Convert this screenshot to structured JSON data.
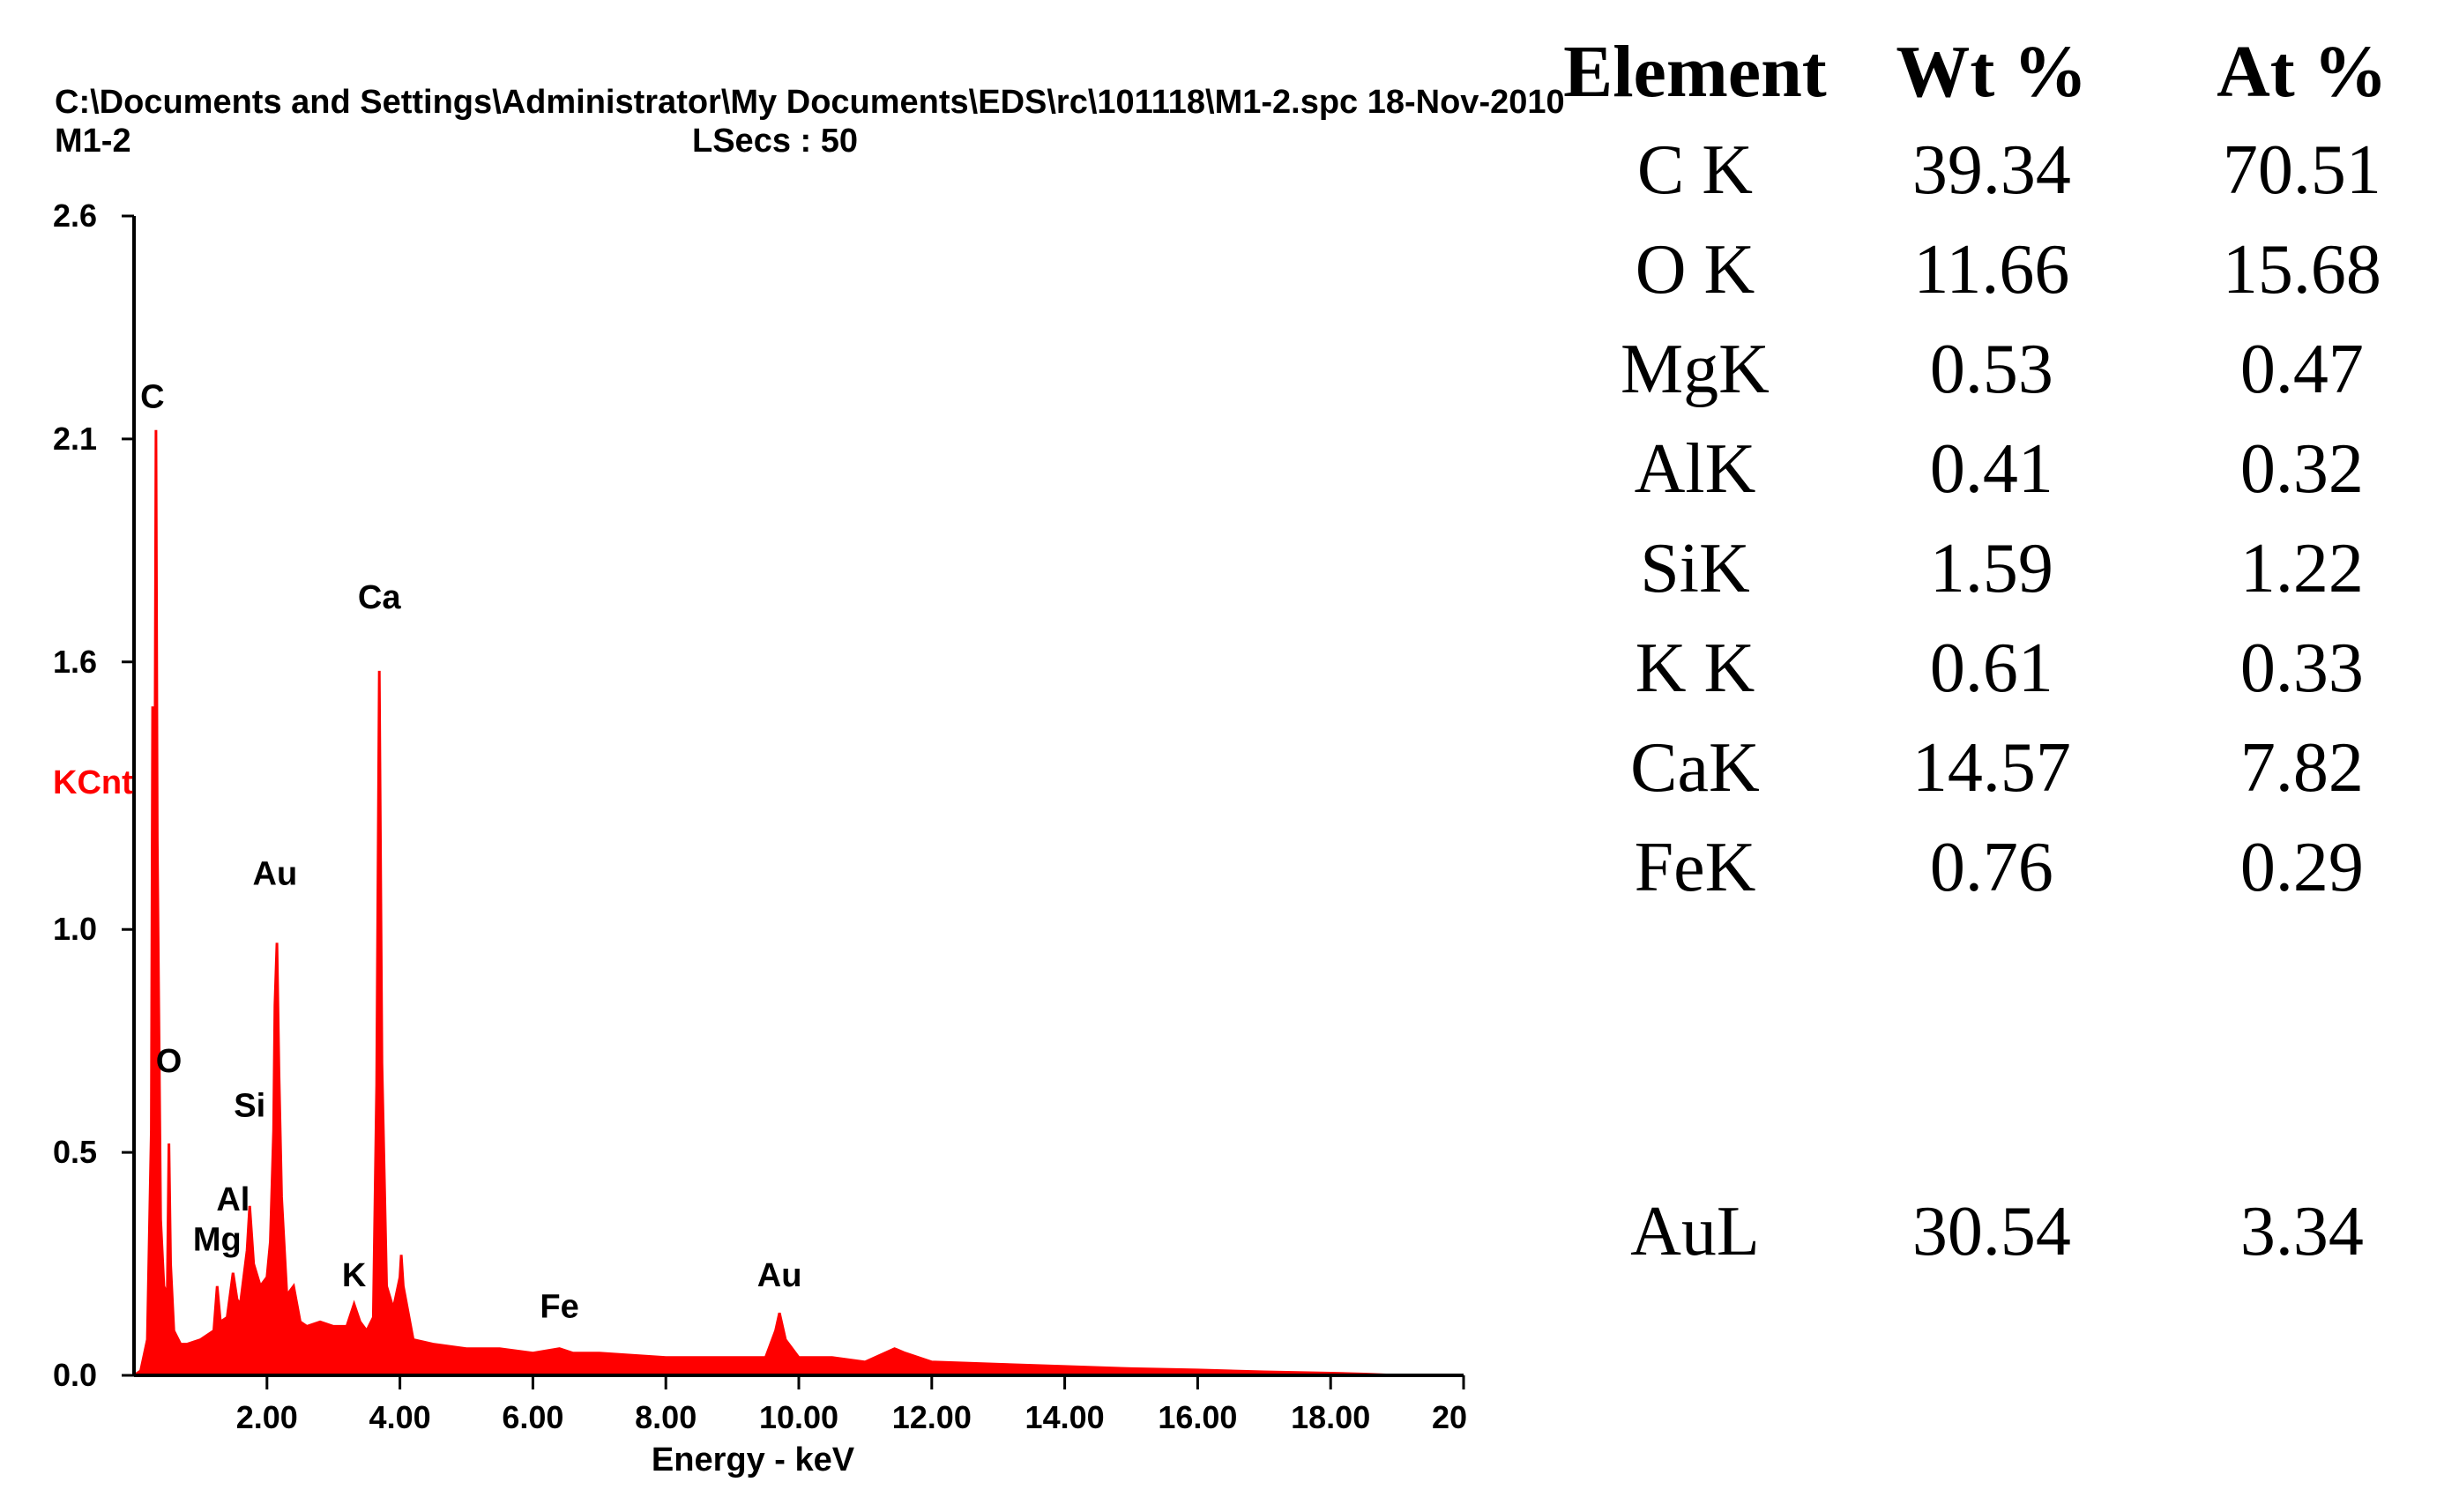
{
  "header": {
    "file_path": "C:\\Documents and Settings\\Administrator\\My Documents\\EDS\\rc\\101118\\M1-2.spc  18-Nov-2010",
    "sample": "M1-2",
    "lsecs": "LSecs :  50"
  },
  "colors": {
    "spectrum": "#ff0000",
    "axis": "#000000",
    "ylabel": "#ff0000"
  },
  "chart_data": {
    "type": "area",
    "xlabel": "Energy - keV",
    "ylabel": "KCnt",
    "xlim": [
      0,
      20
    ],
    "ylim": [
      0,
      2.6
    ],
    "x_ticks": [
      2,
      4,
      6,
      8,
      10,
      12,
      14,
      16,
      18,
      20
    ],
    "x_tick_labels": [
      "2.00",
      "4.00",
      "6.00",
      "8.00",
      "10.00",
      "12.00",
      "14.00",
      "16.00",
      "18.00",
      "20"
    ],
    "y_ticks": [
      0,
      0.5,
      1.0,
      1.6,
      2.1,
      2.6
    ],
    "y_tick_labels": [
      "0.0",
      "0.5",
      "1.0",
      "1.6",
      "2.1",
      "2.6"
    ],
    "series": [
      {
        "values_kcnt_at_keV": [
          [
            0.0,
            0
          ],
          [
            0.1,
            0.01
          ],
          [
            0.2,
            0.08
          ],
          [
            0.26,
            0.55
          ],
          [
            0.28,
            1.5
          ],
          [
            0.3,
            0.6
          ],
          [
            0.33,
            2.12
          ],
          [
            0.35,
            1.2
          ],
          [
            0.4,
            0.35
          ],
          [
            0.45,
            0.2
          ],
          [
            0.5,
            0.18
          ],
          [
            0.525,
            0.52
          ],
          [
            0.55,
            0.25
          ],
          [
            0.6,
            0.1
          ],
          [
            0.7,
            0.07
          ],
          [
            0.8,
            0.07
          ],
          [
            1.0,
            0.08
          ],
          [
            1.2,
            0.1
          ],
          [
            1.25,
            0.2
          ],
          [
            1.3,
            0.12
          ],
          [
            1.4,
            0.13
          ],
          [
            1.49,
            0.23
          ],
          [
            1.55,
            0.17
          ],
          [
            1.6,
            0.16
          ],
          [
            1.7,
            0.28
          ],
          [
            1.74,
            0.38
          ],
          [
            1.8,
            0.25
          ],
          [
            1.9,
            0.2
          ],
          [
            2.0,
            0.22
          ],
          [
            2.05,
            0.3
          ],
          [
            2.1,
            0.55
          ],
          [
            2.12,
            0.83
          ],
          [
            2.15,
            0.97
          ],
          [
            2.18,
            0.68
          ],
          [
            2.22,
            0.4
          ],
          [
            2.3,
            0.18
          ],
          [
            2.4,
            0.2
          ],
          [
            2.5,
            0.12
          ],
          [
            2.6,
            0.11
          ],
          [
            2.8,
            0.12
          ],
          [
            3.0,
            0.11
          ],
          [
            3.2,
            0.11
          ],
          [
            3.31,
            0.16
          ],
          [
            3.4,
            0.12
          ],
          [
            3.5,
            0.1
          ],
          [
            3.6,
            0.13
          ],
          [
            3.65,
            0.65
          ],
          [
            3.69,
            1.58
          ],
          [
            3.73,
            0.7
          ],
          [
            3.8,
            0.2
          ],
          [
            3.9,
            0.15
          ],
          [
            4.0,
            0.22
          ],
          [
            4.02,
            0.27
          ],
          [
            4.05,
            0.2
          ],
          [
            4.2,
            0.08
          ],
          [
            4.5,
            0.07
          ],
          [
            5.0,
            0.06
          ],
          [
            5.5,
            0.06
          ],
          [
            6.0,
            0.05
          ],
          [
            6.4,
            0.06
          ],
          [
            6.6,
            0.05
          ],
          [
            7.0,
            0.05
          ],
          [
            8.0,
            0.04
          ],
          [
            9.0,
            0.04
          ],
          [
            9.5,
            0.04
          ],
          [
            9.65,
            0.1
          ],
          [
            9.71,
            0.14
          ],
          [
            9.8,
            0.08
          ],
          [
            10.0,
            0.04
          ],
          [
            10.5,
            0.04
          ],
          [
            11.0,
            0.03
          ],
          [
            11.44,
            0.06
          ],
          [
            11.6,
            0.05
          ],
          [
            12.0,
            0.03
          ],
          [
            13.0,
            0.025
          ],
          [
            14.0,
            0.02
          ],
          [
            15.0,
            0.015
          ],
          [
            16.0,
            0.012
          ],
          [
            17.0,
            0.008
          ],
          [
            18.0,
            0.005
          ],
          [
            18.5,
            0.003
          ],
          [
            19.0,
            0.0
          ],
          [
            20.0,
            0.0
          ]
        ]
      }
    ],
    "peak_labels": [
      {
        "label": "C",
        "x": 0.277,
        "y": 2.17
      },
      {
        "label": "O",
        "x": 0.525,
        "y": 0.68
      },
      {
        "label": "Si",
        "x": 1.74,
        "y": 0.58
      },
      {
        "label": "Al",
        "x": 1.49,
        "y": 0.37
      },
      {
        "label": "Mg",
        "x": 1.25,
        "y": 0.28
      },
      {
        "label": "Au",
        "x": 2.12,
        "y": 1.1
      },
      {
        "label": "Ca",
        "x": 3.69,
        "y": 1.72
      },
      {
        "label": "K",
        "x": 3.31,
        "y": 0.2
      },
      {
        "label": "Fe",
        "x": 6.4,
        "y": 0.13
      },
      {
        "label": "Au",
        "x": 9.71,
        "y": 0.2
      }
    ]
  },
  "composition_table": {
    "headers": [
      "Element",
      "Wt %",
      "At %"
    ],
    "rows": [
      [
        "C K",
        "39.34",
        "70.51"
      ],
      [
        "O K",
        "11.66",
        "15.68"
      ],
      [
        "MgK",
        "0.53",
        "0.47"
      ],
      [
        "AlK",
        "0.41",
        "0.32"
      ],
      [
        "SiK",
        "1.59",
        "1.22"
      ],
      [
        "K K",
        "0.61",
        "0.33"
      ],
      [
        "CaK",
        "14.57",
        "7.82"
      ],
      [
        "FeK",
        "0.76",
        "0.29"
      ]
    ],
    "extra_row": [
      "AuL",
      "30.54",
      "3.34"
    ]
  }
}
